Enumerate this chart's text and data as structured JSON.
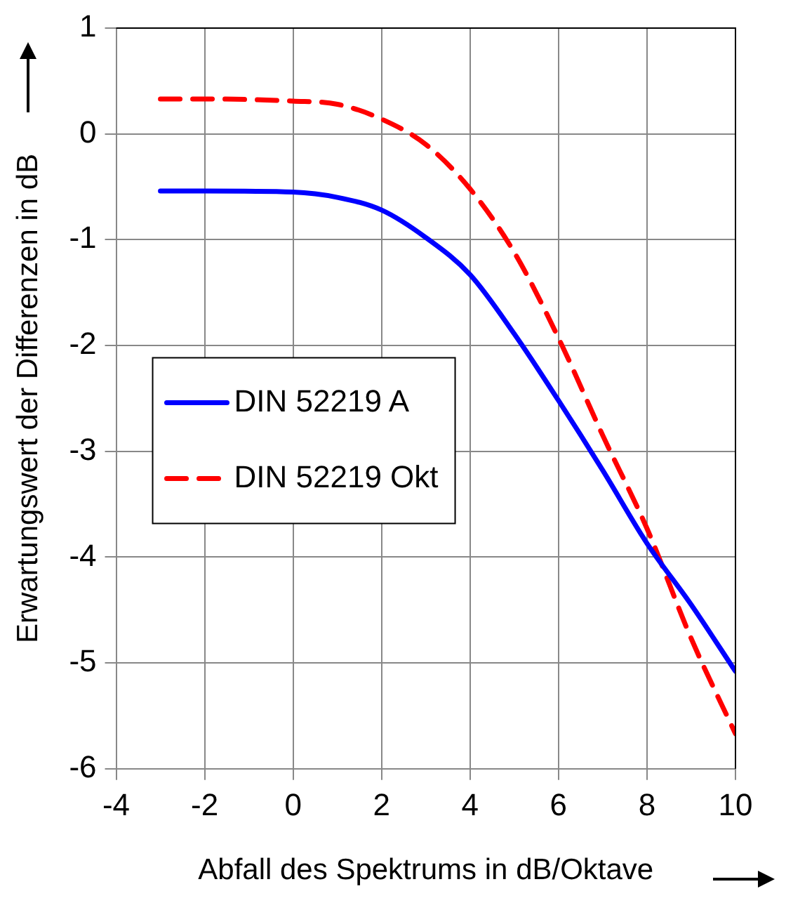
{
  "chart_data": {
    "type": "line",
    "xlabel": "Abfall des Spektrums in dB/Oktave",
    "ylabel": "Erwartungswert der Differenzen in dB",
    "x": [
      -3,
      -2,
      0,
      1,
      2,
      3,
      4,
      5,
      6,
      7,
      8,
      9,
      10
    ],
    "series": [
      {
        "name": "DIN 52219 A",
        "color": "#0000ff",
        "line_style": "solid",
        "values": [
          -0.54,
          -0.54,
          -0.55,
          -0.6,
          -0.72,
          -0.98,
          -1.33,
          -1.89,
          -2.52,
          -3.18,
          -3.87,
          -4.45,
          -5.08
        ]
      },
      {
        "name": "DIN 52219 Okt",
        "color": "#ff0000",
        "line_style": "dashed",
        "values": [
          0.33,
          0.33,
          0.31,
          0.28,
          0.14,
          -0.1,
          -0.52,
          -1.12,
          -1.93,
          -2.85,
          -3.73,
          -4.77,
          -5.67
        ]
      }
    ],
    "xlim": [
      -4,
      10
    ],
    "xticks": [
      -4,
      -2,
      0,
      2,
      4,
      6,
      8,
      10
    ],
    "ylim": [
      -6,
      1
    ],
    "yticks": [
      -6,
      -5,
      -4,
      -3,
      -2,
      -1,
      0,
      1
    ],
    "grid": true,
    "legend": "left",
    "marker": "none"
  }
}
